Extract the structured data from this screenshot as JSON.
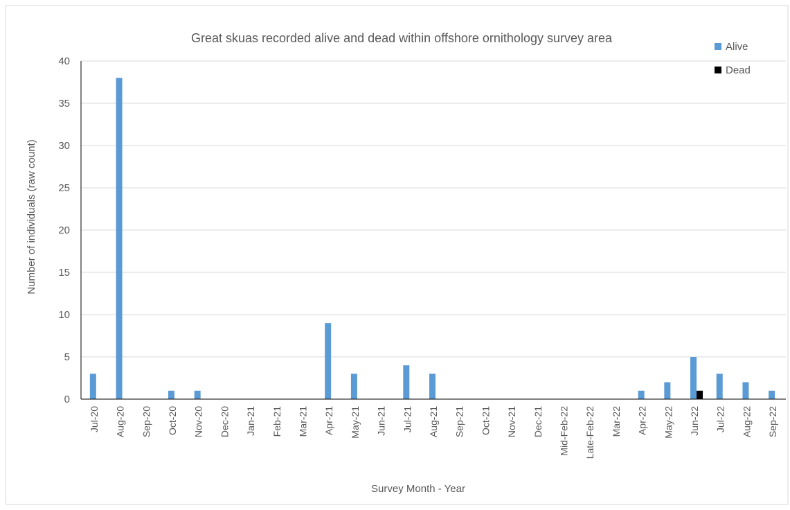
{
  "chart_data": {
    "type": "bar",
    "title": "Great skuas recorded alive and dead within offshore ornithology survey area",
    "xlabel": "Survey Month - Year",
    "ylabel": "Number of individuals (raw count)",
    "ylim": [
      0,
      40
    ],
    "yticks": [
      0,
      5,
      10,
      15,
      20,
      25,
      30,
      35,
      40
    ],
    "grid": true,
    "legend_position": "top-right",
    "categories": [
      "Jul-20",
      "Aug-20",
      "Sep-20",
      "Oct-20",
      "Nov-20",
      "Dec-20",
      "Jan-21",
      "Feb-21",
      "Mar-21",
      "Apr-21",
      "May-21",
      "Jun-21",
      "Jul-21",
      "Aug-21",
      "Sep-21",
      "Oct-21",
      "Nov-21",
      "Dec-21",
      "Mid-Feb-22",
      "Late-Feb-22",
      "Mar-22",
      "Apr-22",
      "May-22",
      "Jun-22",
      "Jul-22",
      "Aug-22",
      "Sep-22"
    ],
    "series": [
      {
        "name": "Alive",
        "color": "#5b9bd5",
        "values": [
          3,
          38,
          0,
          1,
          1,
          0,
          0,
          0,
          0,
          9,
          3,
          0,
          4,
          3,
          0,
          0,
          0,
          0,
          0,
          0,
          0,
          1,
          2,
          5,
          3,
          2,
          1
        ]
      },
      {
        "name": "Dead",
        "color": "#000000",
        "values": [
          0,
          0,
          0,
          0,
          0,
          0,
          0,
          0,
          0,
          0,
          0,
          0,
          0,
          0,
          0,
          0,
          0,
          0,
          0,
          0,
          0,
          0,
          0,
          1,
          0,
          0,
          0
        ]
      }
    ]
  }
}
